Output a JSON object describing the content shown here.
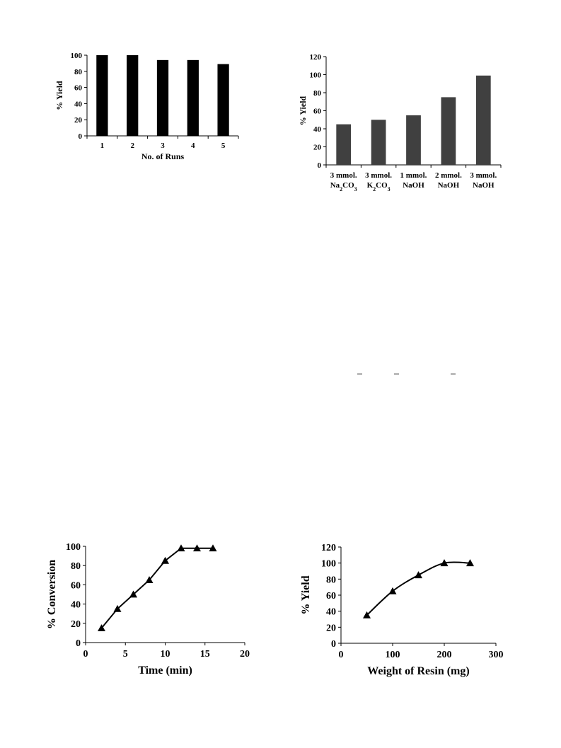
{
  "chart_data": [
    {
      "type": "bar",
      "categories": [
        "1",
        "2",
        "3",
        "4",
        "5"
      ],
      "values": [
        100,
        100,
        94,
        94,
        89
      ],
      "xlabel": "No. of Runs",
      "ylabel": "% Yield",
      "ylim": [
        0,
        100
      ],
      "yticks": [
        "0",
        "20",
        "40",
        "60",
        "80",
        "100"
      ],
      "bar_color": "#000000",
      "grid": false
    },
    {
      "type": "bar",
      "categories": [
        {
          "line1": "3 mmol.",
          "line2_parts": [
            {
              "t": "Na"
            },
            {
              "t": "2",
              "sub": true
            },
            {
              "t": "CO"
            },
            {
              "t": "3",
              "sub": true
            }
          ]
        },
        {
          "line1": "3 mmol.",
          "line2_parts": [
            {
              "t": "K"
            },
            {
              "t": "2",
              "sub": true
            },
            {
              "t": "CO"
            },
            {
              "t": "3",
              "sub": true
            }
          ]
        },
        {
          "line1": "1 mmol.",
          "line2_parts": [
            {
              "t": "NaOH"
            }
          ]
        },
        {
          "line1": "2 mmol.",
          "line2_parts": [
            {
              "t": "NaOH"
            }
          ]
        },
        {
          "line1": "3 mmol.",
          "line2_parts": [
            {
              "t": "NaOH"
            }
          ]
        }
      ],
      "values": [
        45,
        50,
        55,
        75,
        99
      ],
      "xlabel": "",
      "ylabel": "% Yield",
      "ylim": [
        0,
        120
      ],
      "yticks": [
        "0",
        "20",
        "40",
        "60",
        "80",
        "100",
        "120"
      ],
      "bar_color": "#404040",
      "grid": false
    },
    {
      "type": "line",
      "x": [
        2,
        4,
        6,
        8,
        10,
        12,
        14,
        16
      ],
      "y": [
        15,
        35,
        50,
        65,
        85,
        98,
        98,
        98
      ],
      "xlabel": "Time (min)",
      "ylabel": "% Conversion",
      "xlim": [
        0,
        20
      ],
      "ylim": [
        0,
        100
      ],
      "xticks": [
        "0",
        "5",
        "10",
        "15",
        "20"
      ],
      "yticks": [
        "0",
        "20",
        "40",
        "60",
        "80",
        "100"
      ],
      "marker": "triangle",
      "line_style": "segments",
      "grid": false
    },
    {
      "type": "line",
      "x": [
        50,
        100,
        150,
        200,
        250
      ],
      "y": [
        35,
        65,
        85,
        100,
        100
      ],
      "xlabel": "Weight of Resin (mg)",
      "ylabel": "% Yield",
      "xlim": [
        0,
        300
      ],
      "ylim": [
        0,
        120
      ],
      "xticks": [
        "0",
        "100",
        "200",
        "300"
      ],
      "yticks": [
        "0",
        "20",
        "40",
        "60",
        "80",
        "100",
        "120"
      ],
      "marker": "triangle",
      "line_style": "smooth",
      "grid": false
    }
  ]
}
